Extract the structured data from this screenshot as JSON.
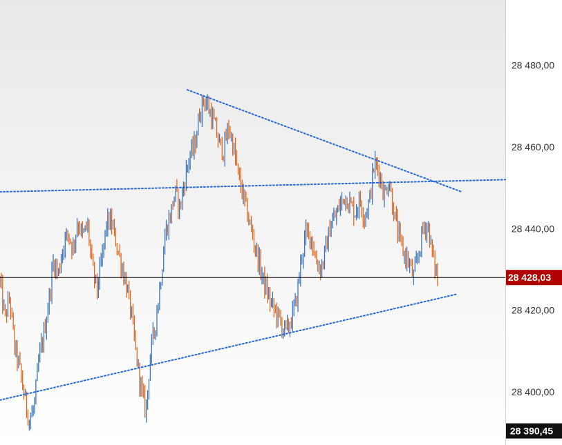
{
  "chart_data": {
    "type": "line",
    "title": "",
    "xlabel": "",
    "ylabel": "",
    "ylim": [
      28387,
      28496
    ],
    "y_ticks": [
      {
        "value": 28480,
        "label": "28 480,00"
      },
      {
        "value": 28460,
        "label": "28 460,00"
      },
      {
        "value": 28440,
        "label": "28 440,00"
      },
      {
        "value": 28420,
        "label": "28 420,00"
      },
      {
        "value": 28400,
        "label": "28 400,00"
      }
    ],
    "last_price": {
      "value": 28428.03,
      "label": "28 428,03"
    },
    "bottom_price": {
      "value": 28390.45,
      "label": "28 390,45"
    },
    "colors": {
      "up": "#3b74b8",
      "down": "#e0661c",
      "trendline": "#2266dd",
      "badge_last": "#b00000",
      "badge_bottom": "#111111",
      "last_line": "#000000",
      "axis_bg": "#ffffff",
      "plot_bg_top": "#e9e9e9",
      "plot_bg_bottom": "#ffffff"
    },
    "series": [
      {
        "values": [
          28427,
          28418,
          28423,
          28411,
          28406,
          28399,
          28393,
          28396,
          28408,
          28414,
          28422,
          28432,
          28429,
          28436,
          28439,
          28435,
          28442,
          28438,
          28441,
          28430,
          28425,
          28433,
          28442,
          28441,
          28436,
          28431,
          28426,
          28419,
          28409,
          28401,
          28395,
          28410,
          28417,
          28427,
          28439,
          28443,
          28449,
          28445,
          28452,
          28458,
          28460,
          28468,
          28472,
          28469,
          28466,
          28461,
          28459,
          28465,
          28460,
          28453,
          28448,
          28443,
          28438,
          28433,
          28428,
          28424,
          28421,
          28419,
          28416,
          28415,
          28418,
          28423,
          28433,
          28439,
          28438,
          28432,
          28430,
          28435,
          28441,
          28443,
          28446,
          28448,
          28446,
          28444,
          28447,
          28443,
          28447,
          28456,
          28454,
          28448,
          28452,
          28444,
          28438,
          28434,
          28432,
          28428,
          28433,
          28440,
          28441,
          28433,
          28428
        ]
      }
    ],
    "trendlines": [
      {
        "y_start": 28449,
        "y_end": 28452
      },
      {
        "y_start": 28474,
        "y_end": 28449
      },
      {
        "y_start": 28398,
        "y_end": 28424
      }
    ]
  }
}
